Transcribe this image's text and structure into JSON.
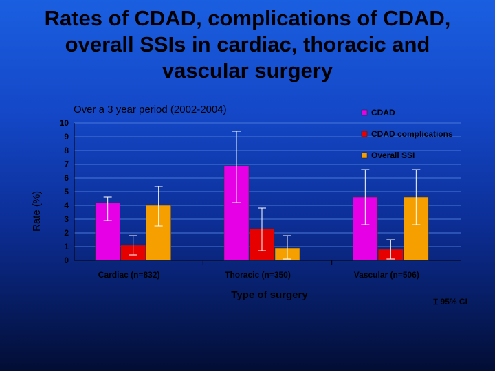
{
  "slide": {
    "title_lines": [
      "Rates of CDAD, complications of CDAD,",
      "overall SSIs in cardiac, thoracic and",
      "vascular surgery"
    ]
  },
  "chart_data": {
    "type": "bar",
    "subtitle": "Over a 3 year period (2002-2004)",
    "ylabel": "Rate (%)",
    "xlabel": "Type of surgery",
    "categories": [
      "Cardiac (n=832)",
      "Thoracic (n=350)",
      "Vascular (n=506)"
    ],
    "yticks": [
      0,
      1,
      2,
      3,
      4,
      5,
      6,
      7,
      8,
      9,
      10
    ],
    "ylim": [
      0,
      10
    ],
    "grid": true,
    "legend_position": "top-right",
    "ci_legend": "95% CI",
    "series": [
      {
        "name": "CDAD",
        "color": "#e600e6",
        "values": [
          4.2,
          6.9,
          4.6
        ],
        "ci_low": [
          2.9,
          4.2,
          2.6
        ],
        "ci_high": [
          4.6,
          9.4,
          6.6
        ]
      },
      {
        "name": "CDAD complications",
        "color": "#e60000",
        "values": [
          1.1,
          2.3,
          0.8
        ],
        "ci_low": [
          0.4,
          0.7,
          0.1
        ],
        "ci_high": [
          1.8,
          3.8,
          1.5
        ]
      },
      {
        "name": "Overall SSI",
        "color": "#f5a000",
        "values": [
          4.0,
          0.9,
          4.6
        ],
        "ci_low": [
          2.5,
          0.1,
          2.6
        ],
        "ci_high": [
          5.4,
          1.8,
          6.6
        ]
      }
    ]
  }
}
